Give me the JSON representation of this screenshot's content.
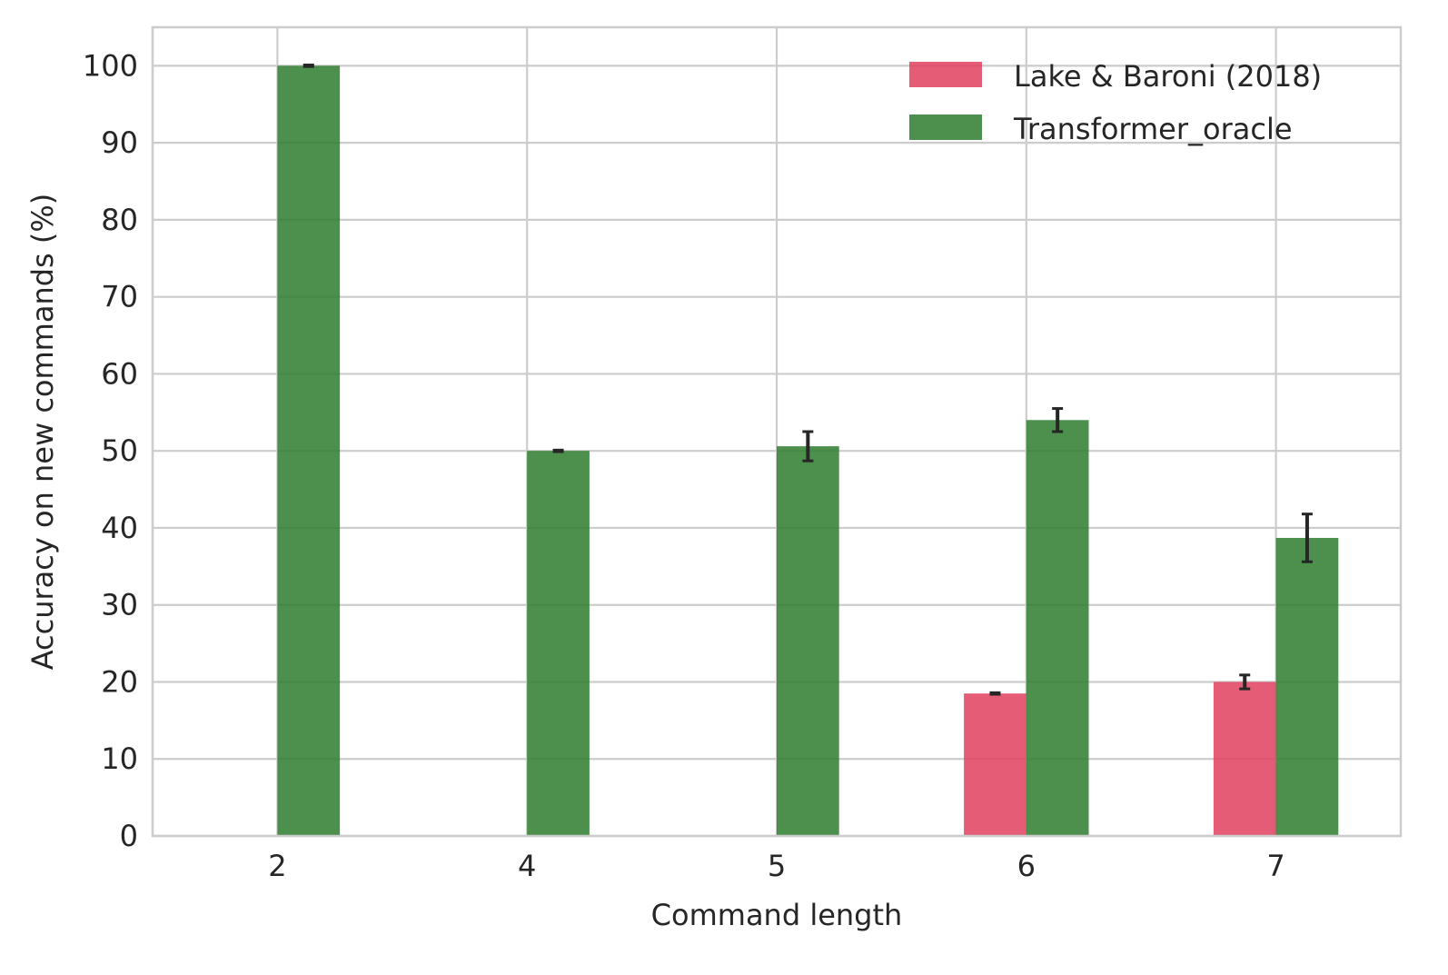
{
  "chart_data": {
    "type": "bar",
    "categories": [
      "2",
      "4",
      "5",
      "6",
      "7"
    ],
    "series": [
      {
        "name": "Lake & Baroni (2018)",
        "color": "#e0405e",
        "values": [
          0,
          0,
          0,
          18.5,
          20
        ],
        "errors": [
          0,
          0,
          0,
          0.1,
          0.9
        ]
      },
      {
        "name": "Transformer_oracle",
        "color": "#2e7d2e",
        "values": [
          100,
          50,
          50.6,
          54,
          38.7
        ],
        "errors": [
          0.1,
          0.1,
          1.9,
          1.5,
          3.1
        ]
      }
    ],
    "xlabel": "Command length",
    "ylabel": "Accuracy on new commands (%)",
    "ylim": [
      0,
      105
    ],
    "yticks": [
      0,
      10,
      20,
      30,
      40,
      50,
      60,
      70,
      80,
      90,
      100
    ],
    "grid": true,
    "legend_position": "top-right"
  }
}
